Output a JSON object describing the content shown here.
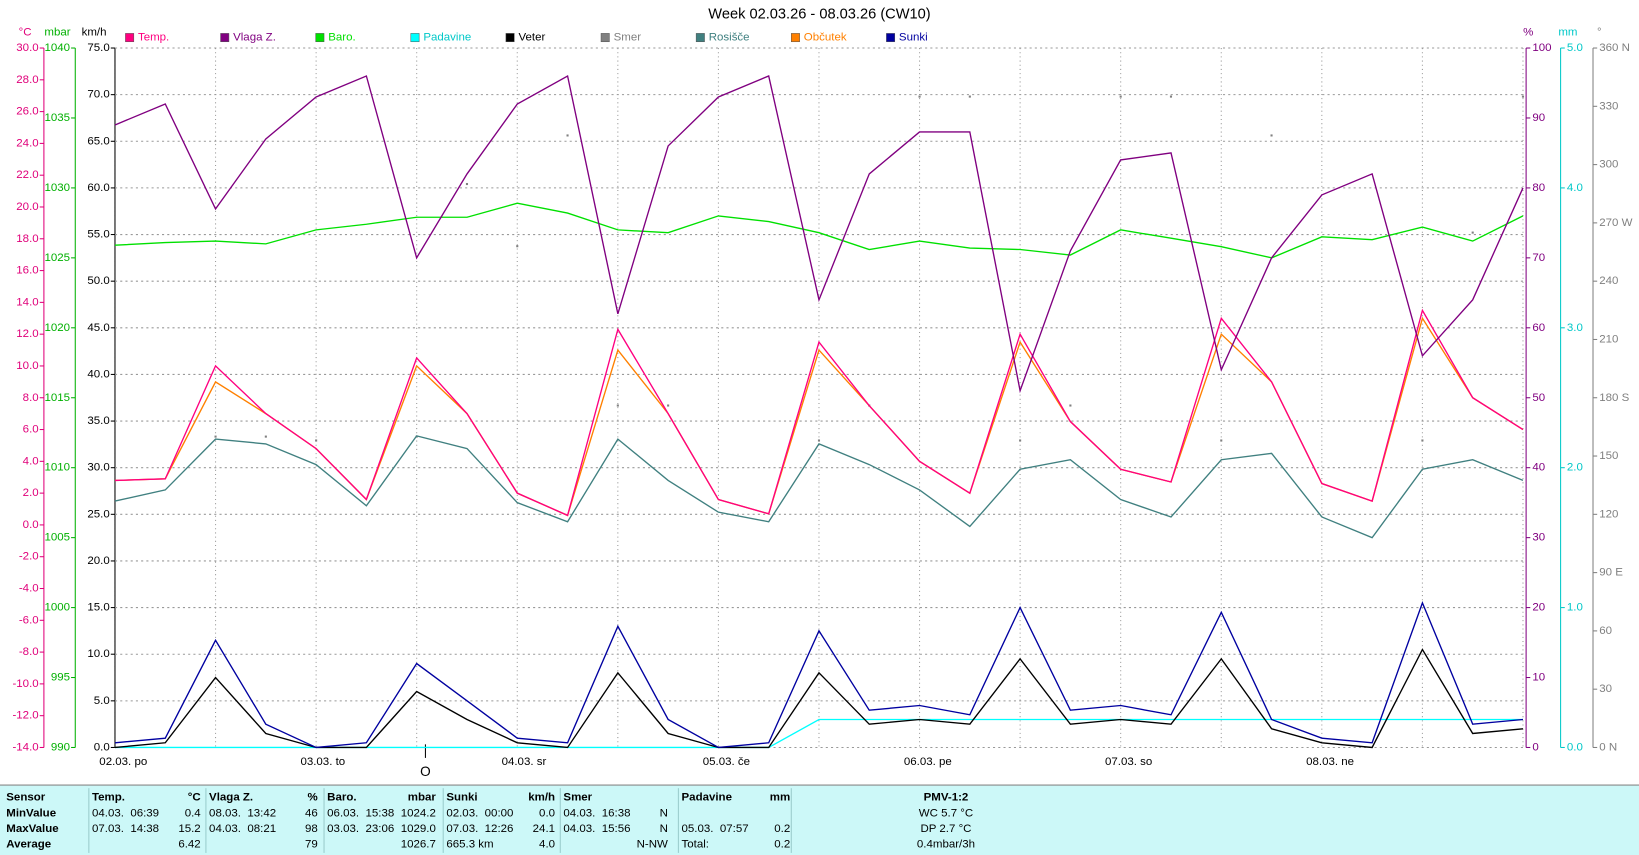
{
  "chart_data": {
    "type": "line",
    "title": "Week 02.03.26 - 08.03.26 (CW10)",
    "annotation": "O",
    "grid": true,
    "categories": [
      "02.03. po",
      null,
      null,
      null,
      "03.03. to",
      null,
      null,
      null,
      "04.03. sr",
      null,
      null,
      null,
      "05.03. če",
      null,
      null,
      null,
      "06.03. pe",
      null,
      null,
      null,
      "07.03. so",
      null,
      null,
      null,
      "08.03. ne",
      null,
      null,
      null,
      null
    ],
    "axes": [
      {
        "unit": "°C",
        "side": "left",
        "color": "#e0007a",
        "lim": [
          -14,
          30
        ],
        "ticks": [
          {
            "value": 30,
            "label": "30.0"
          },
          {
            "value": 28,
            "label": "28.0"
          },
          {
            "value": 26,
            "label": "26.0"
          },
          {
            "value": 24,
            "label": "24.0"
          },
          {
            "value": 22,
            "label": "22.0"
          },
          {
            "value": 20,
            "label": "20.0"
          },
          {
            "value": 18,
            "label": "18.0"
          },
          {
            "value": 16,
            "label": "16.0"
          },
          {
            "value": 14,
            "label": "14.0"
          },
          {
            "value": 12,
            "label": "12.0"
          },
          {
            "value": 10,
            "label": "10.0"
          },
          {
            "value": 8,
            "label": "8.0"
          },
          {
            "value": 6,
            "label": "6.0"
          },
          {
            "value": 4,
            "label": "4.0"
          },
          {
            "value": 2,
            "label": "2.0"
          },
          {
            "value": 0,
            "label": "0.0"
          },
          {
            "value": -2,
            "label": "-2.0"
          },
          {
            "value": -4,
            "label": "-4.0"
          },
          {
            "value": -6,
            "label": "-6.0"
          },
          {
            "value": -8,
            "label": "-8.0"
          },
          {
            "value": -10,
            "label": "-10.0"
          },
          {
            "value": -12,
            "label": "-12.0"
          },
          {
            "value": -14,
            "label": "-14.0"
          }
        ]
      },
      {
        "unit": "mbar",
        "side": "left",
        "color": "#00b000",
        "lim": [
          990,
          1040
        ],
        "ticks": [
          1040,
          1035,
          1030,
          1025,
          1020,
          1015,
          1010,
          1005,
          1000,
          995,
          990
        ]
      },
      {
        "unit": "km/h",
        "side": "left",
        "color": "#000000",
        "lim": [
          0,
          75
        ],
        "ticks": [
          {
            "value": 75,
            "label": "75.0"
          },
          {
            "value": 70,
            "label": "70.0"
          },
          {
            "value": 65,
            "label": "65.0"
          },
          {
            "value": 60,
            "label": "60.0"
          },
          {
            "value": 55,
            "label": "55.0"
          },
          {
            "value": 50,
            "label": "50.0"
          },
          {
            "value": 45,
            "label": "45.0"
          },
          {
            "value": 40,
            "label": "40.0"
          },
          {
            "value": 35,
            "label": "35.0"
          },
          {
            "value": 30,
            "label": "30.0"
          },
          {
            "value": 25,
            "label": "25.0"
          },
          {
            "value": 20,
            "label": "20.0"
          },
          {
            "value": 15,
            "label": "15.0"
          },
          {
            "value": 10,
            "label": "10.0"
          },
          {
            "value": 5,
            "label": "5.0"
          },
          {
            "value": 0,
            "label": "0.0"
          }
        ]
      },
      {
        "unit": "%",
        "side": "right",
        "color": "#800080",
        "lim": [
          0,
          100
        ],
        "ticks": [
          100,
          90,
          80,
          70,
          60,
          50,
          40,
          30,
          20,
          10,
          0
        ]
      },
      {
        "unit": "mm",
        "side": "right",
        "color": "#00c8c8",
        "lim": [
          0,
          5
        ],
        "ticks": [
          {
            "value": 5,
            "label": "5.0"
          },
          {
            "value": 4,
            "label": "4.0"
          },
          {
            "value": 3,
            "label": "3.0"
          },
          {
            "value": 2,
            "label": "2.0"
          },
          {
            "value": 1,
            "label": "1.0"
          },
          {
            "value": 0,
            "label": "0.0"
          }
        ]
      },
      {
        "unit": "°",
        "side": "right",
        "color": "#808080",
        "lim": [
          0,
          360
        ],
        "ticks": [
          {
            "value": 360,
            "label": "360 N"
          },
          330,
          300,
          {
            "value": 270,
            "label": "270 W"
          },
          240,
          210,
          {
            "value": 180,
            "label": "180 S"
          },
          150,
          120,
          {
            "value": 90,
            "label": "90 E"
          },
          60,
          30,
          {
            "value": 0,
            "label": "0 N"
          }
        ]
      }
    ],
    "series": [
      {
        "name": "Temp.",
        "color": "#ff0080",
        "axis": 0,
        "style": "line",
        "values": [
          2.8,
          2.9,
          10.0,
          7.0,
          4.8,
          1.6,
          10.5,
          7.0,
          2.0,
          0.6,
          12.3,
          7.0,
          1.6,
          0.7,
          11.5,
          7.5,
          4.0,
          2.0,
          12.0,
          6.5,
          3.5,
          2.7,
          13.0,
          9.0,
          2.6,
          1.5,
          13.5,
          8.0,
          6.0
        ]
      },
      {
        "name": "Vlaga Z.",
        "color": "#800080",
        "axis": 3,
        "style": "line",
        "values": [
          89,
          92,
          77,
          87,
          93,
          96,
          70,
          82,
          92,
          96,
          62,
          86,
          93,
          96,
          64,
          82,
          88,
          88,
          51,
          71,
          84,
          85,
          54,
          70,
          79,
          82,
          56,
          64,
          80
        ]
      },
      {
        "name": "Baro.",
        "color": "#00e000",
        "axis": 1,
        "style": "line",
        "values": [
          1025.9,
          1026.1,
          1026.2,
          1026.0,
          1027.0,
          1027.4,
          1027.9,
          1027.9,
          1028.9,
          1028.2,
          1027.0,
          1026.8,
          1028.0,
          1027.6,
          1026.8,
          1025.6,
          1026.2,
          1025.7,
          1025.6,
          1025.2,
          1027.0,
          1026.4,
          1025.8,
          1025.0,
          1026.5,
          1026.3,
          1027.2,
          1026.2,
          1028.0
        ]
      },
      {
        "name": "Padavine",
        "color": "#00ffff",
        "axis": 4,
        "style": "line",
        "values": [
          0,
          0,
          0,
          0,
          0,
          0,
          0,
          0,
          0,
          0,
          0,
          0,
          0,
          0,
          0.2,
          0.2,
          0.2,
          0.2,
          0.2,
          0.2,
          0.2,
          0.2,
          0.2,
          0.2,
          0.2,
          0.2,
          0.2,
          0.2,
          0.2
        ]
      },
      {
        "name": "Veter",
        "color": "#000000",
        "axis": 2,
        "style": "line",
        "values": [
          0,
          0.5,
          7.5,
          1.5,
          0,
          0,
          6.0,
          3.0,
          0.5,
          0,
          8.0,
          1.5,
          0,
          0,
          8.0,
          2.5,
          3.0,
          2.5,
          9.5,
          2.5,
          3.0,
          2.5,
          9.5,
          2.0,
          0.5,
          0,
          10.5,
          1.5,
          2.0
        ]
      },
      {
        "name": "Smer",
        "color": "#808080",
        "axis": 5,
        "style": "dots",
        "values": [
          315,
          null,
          160,
          160,
          158,
          null,
          160,
          290,
          258,
          315,
          176,
          176,
          null,
          null,
          158,
          176,
          335,
          335,
          158,
          176,
          335,
          335,
          158,
          315,
          null,
          null,
          158,
          265,
          335
        ]
      },
      {
        "name": "Rosišče",
        "color": "#408080",
        "axis": 0,
        "style": "line",
        "values": [
          1.5,
          2.2,
          5.4,
          5.1,
          3.8,
          1.2,
          5.6,
          4.8,
          1.4,
          0.2,
          5.4,
          2.8,
          0.8,
          0.2,
          5.1,
          3.8,
          2.2,
          -0.1,
          3.5,
          4.1,
          1.6,
          0.5,
          4.1,
          4.5,
          0.5,
          -0.8,
          3.5,
          4.1,
          2.8
        ]
      },
      {
        "name": "Občutek",
        "color": "#ff8000",
        "axis": 0,
        "style": "line",
        "values": [
          2.8,
          2.9,
          9.0,
          7.0,
          4.8,
          1.6,
          10.0,
          7.0,
          2.0,
          0.6,
          11.0,
          7.0,
          1.6,
          0.7,
          11.0,
          7.5,
          4.0,
          2.0,
          11.5,
          6.5,
          3.5,
          2.7,
          12.0,
          9.0,
          2.6,
          1.5,
          13.0,
          8.0,
          6.0
        ]
      },
      {
        "name": "Sunki",
        "color": "#0000a0",
        "axis": 2,
        "style": "line",
        "values": [
          0.5,
          1.0,
          11.5,
          2.5,
          0,
          0.5,
          9.0,
          5.0,
          1.0,
          0.5,
          13.0,
          3.0,
          0,
          0.5,
          12.5,
          4.0,
          4.5,
          3.5,
          15.0,
          4.0,
          4.5,
          3.5,
          14.5,
          3.0,
          1.0,
          0.5,
          15.5,
          2.5,
          3.0
        ]
      }
    ]
  },
  "stats_table": {
    "row_labels": [
      "Sensor",
      "MinValue",
      "MaxValue",
      "Average"
    ],
    "columns": [
      {
        "header": "Temp.",
        "unit": "°C",
        "rows": [
          {
            "left": "04.03.  06:39",
            "right": "0.4"
          },
          {
            "left": "07.03.  14:38",
            "right": "15.2"
          },
          {
            "right": "6.42"
          }
        ]
      },
      {
        "header": "Vlaga Z.",
        "unit": "%",
        "rows": [
          {
            "left": "08.03.  13:42",
            "right": "46"
          },
          {
            "left": "04.03.  08:21",
            "right": "98"
          },
          {
            "right": "79"
          }
        ]
      },
      {
        "header": "Baro.",
        "unit": "mbar",
        "rows": [
          {
            "left": "06.03.  15:38",
            "right": "1024.2"
          },
          {
            "left": "03.03.  23:06",
            "right": "1029.0"
          },
          {
            "right": "1026.7"
          }
        ]
      },
      {
        "header": "Sunki",
        "unit": "km/h",
        "rows": [
          {
            "left": "02.03.  00:00",
            "right": "0.0"
          },
          {
            "left": "07.03.  12:26",
            "right": "24.1"
          },
          {
            "left": "665.3 km",
            "right": "4.0"
          }
        ]
      },
      {
        "header": "Smer",
        "rows": [
          {
            "left": "04.03.  16:38",
            "right": "N"
          },
          {
            "left": "04.03.  15:56",
            "right": "N"
          },
          {
            "right": "N-NW"
          }
        ]
      },
      {
        "header": "Padavine",
        "unit": "mm",
        "rows": [
          {},
          {
            "left": "05.03.  07:57",
            "right": "0.2"
          },
          {
            "left": "Total:",
            "right": "0.2"
          }
        ]
      }
    ],
    "pmv": {
      "header": "PMV-1:2",
      "lines": [
        "WC 5.7 °C",
        "DP 2.7 °C",
        "0.4mbar/3h"
      ]
    }
  }
}
